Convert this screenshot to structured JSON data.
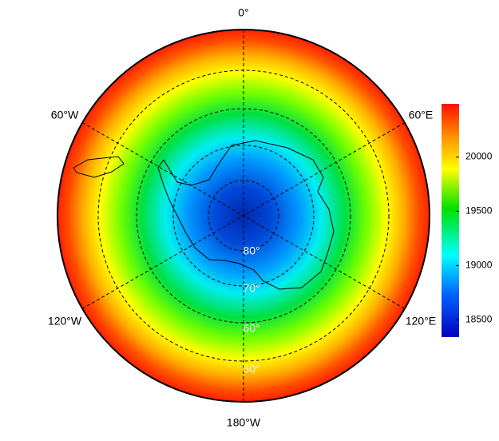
{
  "map": {
    "lon_labels": {
      "top": "0°",
      "upper_right": "60°E",
      "lower_right": "120°E",
      "bottom": "180°W",
      "lower_left": "120°W",
      "upper_left": "60°W"
    },
    "lat_labels": [
      "80°",
      "70°",
      "60°",
      "50°"
    ],
    "colorbar": {
      "lim": [
        18340,
        20490
      ],
      "ticks": [
        18500,
        19000,
        19500,
        20000
      ]
    }
  }
}
